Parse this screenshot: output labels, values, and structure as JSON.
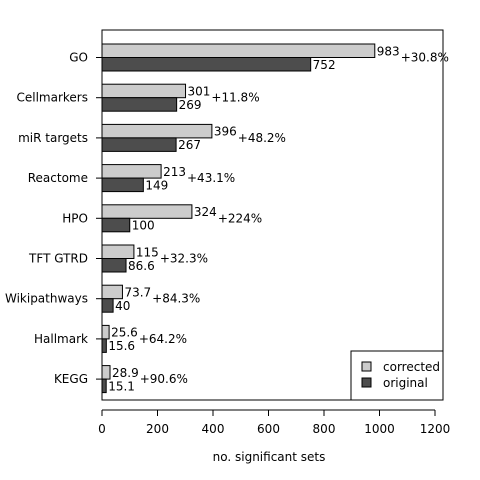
{
  "chart_data": {
    "type": "bar",
    "orientation": "horizontal",
    "categories": [
      "GO",
      "Cellmarkers",
      "miR targets",
      "Reactome",
      "HPO",
      "TFT GTRD",
      "Wikipathways",
      "Hallmark",
      "KEGG"
    ],
    "series": [
      {
        "name": "corrected",
        "color": "#cccccc",
        "values": [
          983,
          301,
          396,
          213,
          324,
          115,
          73.7,
          25.6,
          28.9
        ],
        "value_labels": [
          "983",
          "301",
          "396",
          "213",
          "324",
          "115",
          "73.7",
          "25.6",
          "28.9"
        ]
      },
      {
        "name": "original",
        "color": "#4d4d4d",
        "values": [
          752,
          269,
          267,
          149,
          100,
          86.6,
          40,
          15.6,
          15.1
        ],
        "value_labels": [
          "752",
          "269",
          "267",
          "149",
          "100",
          "86.6",
          "40",
          "15.6",
          "15.1"
        ]
      }
    ],
    "change_labels": [
      "+30.8%",
      "+11.8%",
      "+48.2%",
      "+43.1%",
      "+224%",
      "+32.3%",
      "+84.3%",
      "+64.2%",
      "+90.6%"
    ],
    "xlabel": "no. significant sets",
    "ylabel": "",
    "title": "",
    "xlim": [
      0,
      1200
    ],
    "xticks": [
      0,
      200,
      400,
      600,
      800,
      1000,
      1200
    ],
    "grid": false,
    "legend_position": "bottom-right"
  }
}
